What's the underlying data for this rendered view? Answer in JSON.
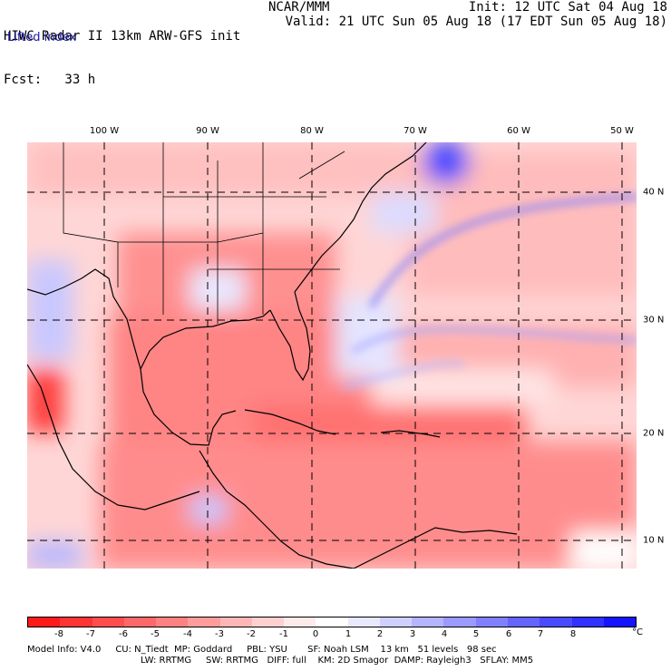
{
  "header": {
    "left_line1": "HIWC Radar II 13km ARW-GFS init",
    "left_line2": "Fcst:   33 h",
    "center_line1": "NCAR/MMM",
    "right_line1": "Init: 12 UTC Sat 04 Aug 18",
    "right_line2": "Valid: 21 UTC Sun 05 Aug 18 (17 EDT Sun 05 Aug 18)",
    "field_name": "Lifted index"
  },
  "map": {
    "lon_labels": [
      "100 W",
      "90 W",
      "80 W",
      "70 W",
      "60 W",
      "50 W"
    ],
    "lat_labels": [
      "40 N",
      "30 N",
      "20 N",
      "10 N"
    ]
  },
  "colorbar": {
    "colors": [
      "#ff1a1a",
      "#ff3434",
      "#ff4e4e",
      "#ff6868",
      "#ff8282",
      "#ff9c9c",
      "#ffb6b6",
      "#ffd0d0",
      "#ffeaea",
      "#ffffff",
      "#e8e8ff",
      "#d0d0ff",
      "#b4b4ff",
      "#9a9aff",
      "#8080ff",
      "#6464ff",
      "#4a4aff",
      "#3030ff",
      "#1414ff"
    ],
    "ticks": [
      "-8",
      "-7",
      "-6",
      "-5",
      "-4",
      "-3",
      "-2",
      "-1",
      "0",
      "1",
      "2",
      "3",
      "4",
      "5",
      "6",
      "7",
      "8"
    ],
    "unit": "°C"
  },
  "footer": {
    "line1": "Model Info: V4.0     CU: N_Tiedt  MP: Goddard     PBL: YSU       SF: Noah LSM    13 km   51 levels   98 sec",
    "line2": "LW: RRTMG     SW: RRTMG   DIFF: full    KM: 2D Smagor  DAMP: Rayleigh3   SFLAY: MM5"
  }
}
